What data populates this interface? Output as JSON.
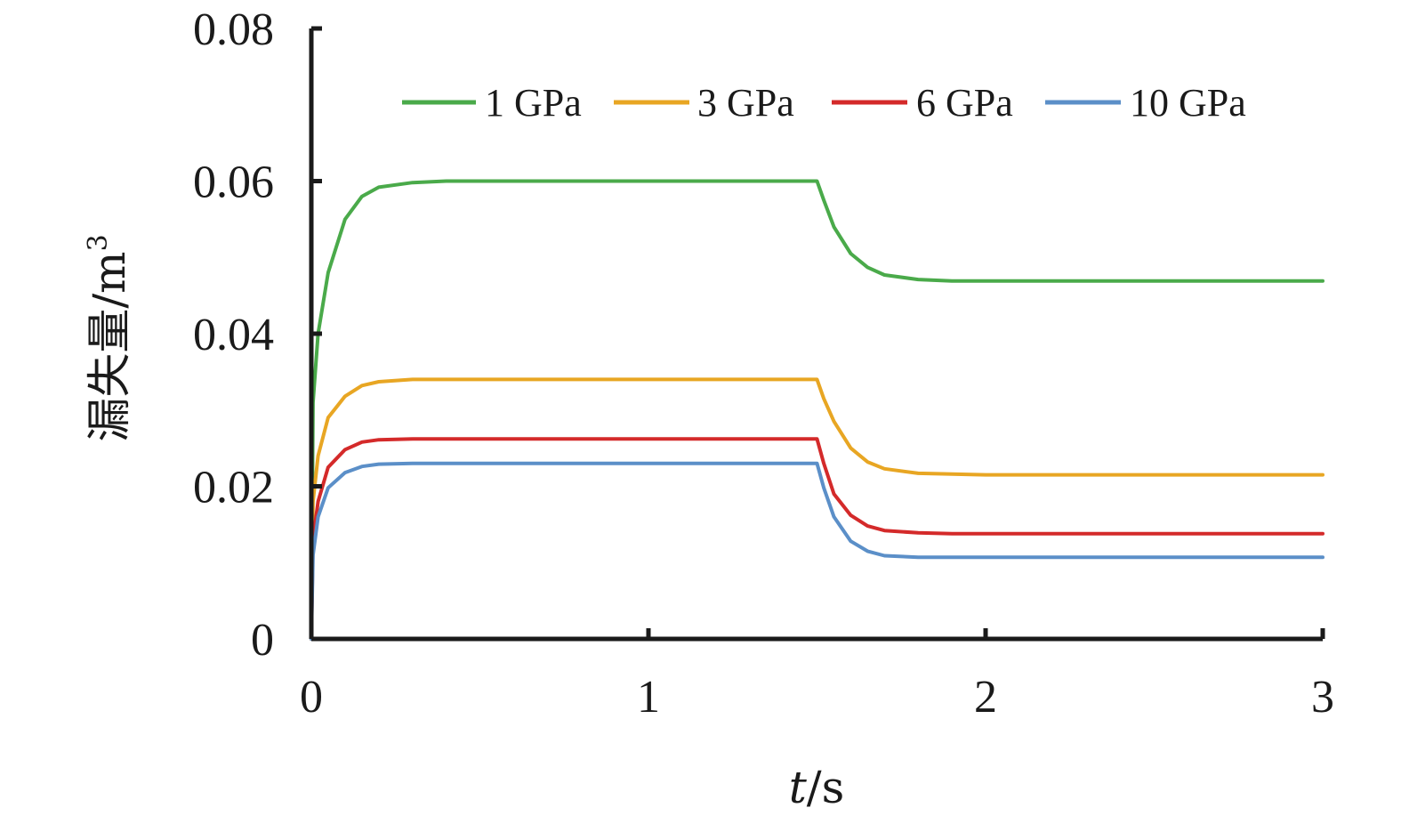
{
  "chart_data": {
    "type": "line",
    "xlabel_italic": "t",
    "xlabel_unit": "/s",
    "ylabel_main": "漏失量/m",
    "ylabel_sup": "3",
    "xlim": [
      0,
      3
    ],
    "ylim": [
      0,
      0.08
    ],
    "x_ticks": [
      "0",
      "1",
      "2",
      "3"
    ],
    "y_ticks": [
      "0",
      "0.02",
      "0.04",
      "0.06",
      "0.08"
    ],
    "legend_position": "top",
    "grid": false,
    "series": [
      {
        "name": "1 GPa",
        "color": "#4aaa4a",
        "x": [
          0,
          0.005,
          0.02,
          0.05,
          0.1,
          0.15,
          0.2,
          0.3,
          0.4,
          0.5,
          1.0,
          1.5,
          1.52,
          1.55,
          1.6,
          1.65,
          1.7,
          1.8,
          1.9,
          2.0,
          2.5,
          3.0
        ],
        "y": [
          0,
          0.031,
          0.04,
          0.048,
          0.055,
          0.058,
          0.0592,
          0.0598,
          0.06,
          0.06,
          0.06,
          0.06,
          0.0575,
          0.054,
          0.0505,
          0.0487,
          0.0477,
          0.0471,
          0.0469,
          0.0469,
          0.0469,
          0.0469
        ]
      },
      {
        "name": "3 GPa",
        "color": "#e8a623",
        "x": [
          0,
          0.005,
          0.02,
          0.05,
          0.1,
          0.15,
          0.2,
          0.3,
          0.4,
          0.5,
          1.0,
          1.5,
          1.52,
          1.55,
          1.6,
          1.65,
          1.7,
          1.8,
          1.9,
          2.0,
          2.5,
          3.0
        ],
        "y": [
          0,
          0.018,
          0.024,
          0.029,
          0.0318,
          0.0332,
          0.0337,
          0.034,
          0.034,
          0.034,
          0.034,
          0.034,
          0.0315,
          0.0285,
          0.025,
          0.0232,
          0.0223,
          0.0217,
          0.0216,
          0.0215,
          0.0215,
          0.0215
        ]
      },
      {
        "name": "6 GPa",
        "color": "#d42a2a",
        "x": [
          0,
          0.005,
          0.02,
          0.05,
          0.1,
          0.15,
          0.2,
          0.3,
          0.4,
          0.5,
          1.0,
          1.5,
          1.52,
          1.55,
          1.6,
          1.65,
          1.7,
          1.8,
          1.9,
          2.0,
          2.5,
          3.0
        ],
        "y": [
          0,
          0.013,
          0.018,
          0.0225,
          0.0248,
          0.0258,
          0.0261,
          0.0262,
          0.0262,
          0.0262,
          0.0262,
          0.0262,
          0.023,
          0.019,
          0.0162,
          0.0148,
          0.0142,
          0.0139,
          0.0138,
          0.0138,
          0.0138,
          0.0138
        ]
      },
      {
        "name": "10 GPa",
        "color": "#5b8fc8",
        "x": [
          0,
          0.005,
          0.02,
          0.05,
          0.1,
          0.15,
          0.2,
          0.3,
          0.4,
          0.5,
          1.0,
          1.5,
          1.52,
          1.55,
          1.6,
          1.65,
          1.7,
          1.8,
          1.9,
          2.0,
          2.5,
          3.0
        ],
        "y": [
          0,
          0.011,
          0.016,
          0.0198,
          0.0218,
          0.0226,
          0.0229,
          0.023,
          0.023,
          0.023,
          0.023,
          0.023,
          0.0198,
          0.016,
          0.0128,
          0.0115,
          0.0109,
          0.0107,
          0.0107,
          0.0107,
          0.0107,
          0.0107
        ]
      }
    ]
  }
}
